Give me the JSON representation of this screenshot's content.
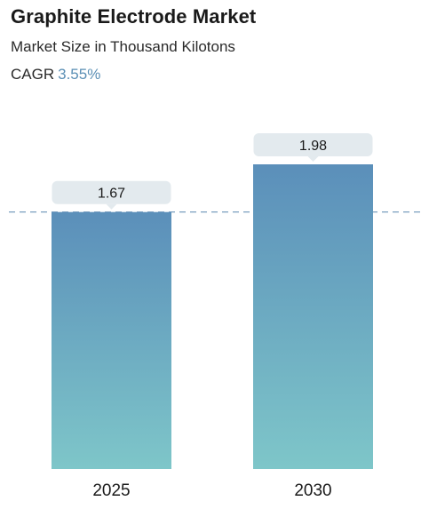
{
  "header": {
    "title": "Graphite Electrode Market",
    "subtitle": "Market Size in Thousand Kilotons",
    "cagr_label": "CAGR",
    "cagr_value": "3.55%"
  },
  "colors": {
    "bar_top": "#5b8fba",
    "bar_bottom": "#7ec6c9",
    "callout": "#e3eaee",
    "reference_line": "#6a93b8",
    "cagr_accent": "#5b8fb5"
  },
  "chart_data": {
    "type": "bar",
    "title": "Graphite Electrode Market",
    "subtitle": "Market Size in Thousand Kilotons",
    "categories": [
      "2025",
      "2030"
    ],
    "series": [
      {
        "values": [
          1.67,
          1.98
        ]
      }
    ],
    "data_labels": [
      "1.67",
      "1.98"
    ],
    "reference_line": {
      "value": 1.67,
      "style": "dashed"
    },
    "ylim": [
      0,
      1.98
    ],
    "grid": false,
    "legend": "none",
    "y_axis_visible": false
  }
}
